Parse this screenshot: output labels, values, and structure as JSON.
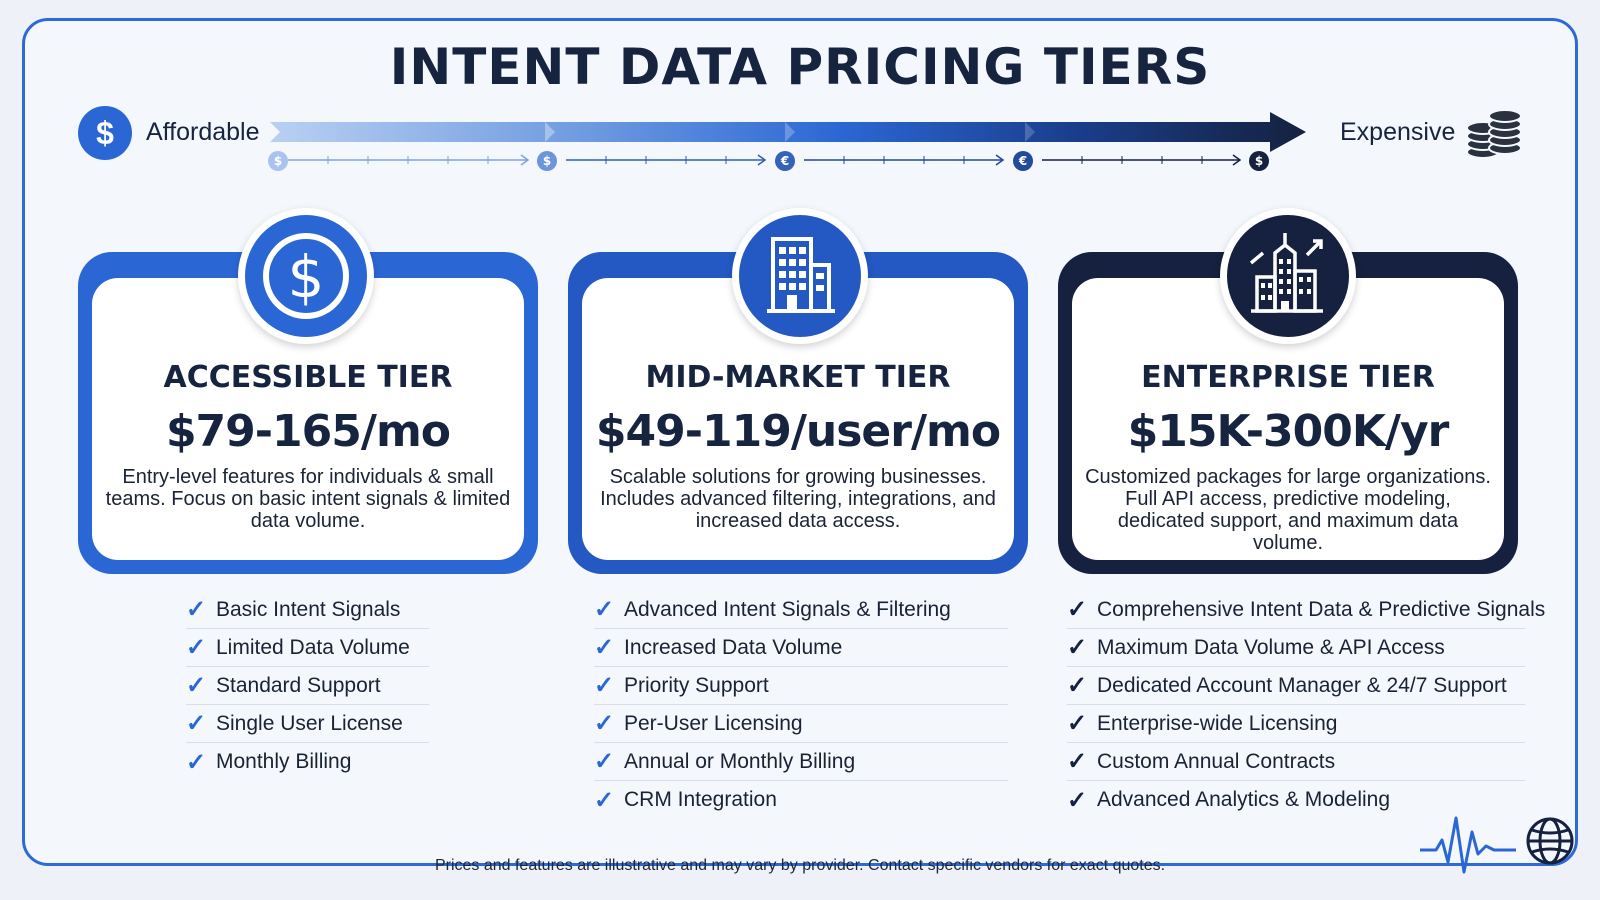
{
  "title": "INTENT DATA PRICING TIERS",
  "scale": {
    "left_label": "Affordable",
    "right_label": "Expensive",
    "left_icon": "dollar-coin-icon",
    "right_icon": "coin-stack-icon",
    "markers": [
      "$",
      "$",
      "€",
      "€",
      "$"
    ]
  },
  "colors": {
    "accessible": "#2b67d4",
    "mid_market": "#2459c3",
    "enterprise": "#15213f",
    "check": "#2b67d4"
  },
  "tiers": [
    {
      "icon": "dollar-icon",
      "name": "ACCESSIBLE TIER",
      "price": "$79-165/mo",
      "description": "Entry-level features for individuals & small teams. Focus on basic intent signals & limited data volume.",
      "features": [
        "Basic Intent Signals",
        "Limited Data Volume",
        "Standard Support",
        "Single User License",
        "Monthly Billing"
      ]
    },
    {
      "icon": "office-building-icon",
      "name": "MID-MARKET TIER",
      "price": "$49-119/user/mo",
      "description": "Scalable solutions for growing businesses. Includes advanced filtering, integrations, and increased data access.",
      "features": [
        "Advanced Intent Signals & Filtering",
        "Increased Data Volume",
        "Priority Support",
        "Per-User Licensing",
        "Annual or Monthly Billing",
        "CRM Integration"
      ]
    },
    {
      "icon": "skyscraper-growth-icon",
      "name": "ENTERPRISE TIER",
      "price": "$15K-300K/yr",
      "description": "Customized packages for large organizations. Full API access, predictive modeling, dedicated support, and maximum data volume.",
      "features": [
        "Comprehensive Intent Data & Predictive Signals",
        "Maximum Data Volume & API Access",
        "Dedicated Account Manager & 24/7 Support",
        "Enterprise-wide Licensing",
        "Custom Annual Contracts",
        "Advanced Analytics & Modeling"
      ]
    }
  ],
  "footer": "Prices and features are illustrative and may vary by provider. Contact specific vendors for exact quotes.",
  "footer_icons": [
    "pulse-icon",
    "globe-icon"
  ]
}
